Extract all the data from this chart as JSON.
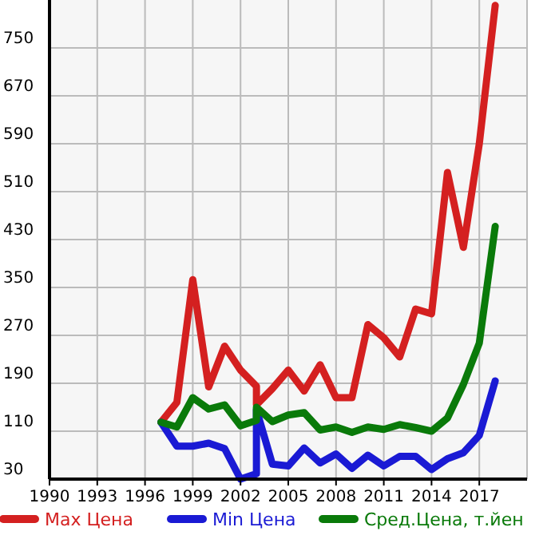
{
  "chart_data": {
    "type": "line",
    "x": [
      1997,
      1998,
      1999,
      2000,
      2001,
      2002,
      2003,
      2003,
      2004,
      2005,
      2006,
      2007,
      2008,
      2009,
      2010,
      2011,
      2012,
      2013,
      2014,
      2015,
      2016,
      2017,
      2018
    ],
    "series": [
      {
        "name": "Max Цена",
        "color": "#d42020",
        "values": [
          125,
          158,
          363,
          184,
          252,
          212,
          185,
          154,
          181,
          212,
          177,
          221,
          166,
          166,
          288,
          266,
          234,
          314,
          306,
          542,
          417,
          590,
          821
        ]
      },
      {
        "name": "Min Цена",
        "color": "#1a1ad4",
        "values": [
          125,
          85,
          85,
          90,
          81,
          30,
          39,
          146,
          55,
          52,
          82,
          57,
          72,
          48,
          70,
          52,
          68,
          68,
          46,
          64,
          74,
          103,
          194
        ]
      },
      {
        "name": "Сред.Цена, т.йен",
        "color": "#0a7a0a",
        "values": [
          125,
          117,
          166,
          147,
          154,
          119,
          128,
          150,
          126,
          137,
          141,
          112,
          117,
          108,
          117,
          113,
          121,
          116,
          110,
          132,
          188,
          257,
          452
        ]
      }
    ],
    "xlim": [
      1990,
      2020
    ],
    "xticks": [
      1990,
      1993,
      1996,
      1999,
      2002,
      2005,
      2008,
      2011,
      2014,
      2017
    ],
    "ylim": [
      30,
      830
    ],
    "yticks": [
      30,
      110,
      190,
      270,
      350,
      430,
      510,
      590,
      670,
      750
    ],
    "grid": true,
    "legend": "bottom",
    "marker": "none",
    "line_style": "solid"
  }
}
